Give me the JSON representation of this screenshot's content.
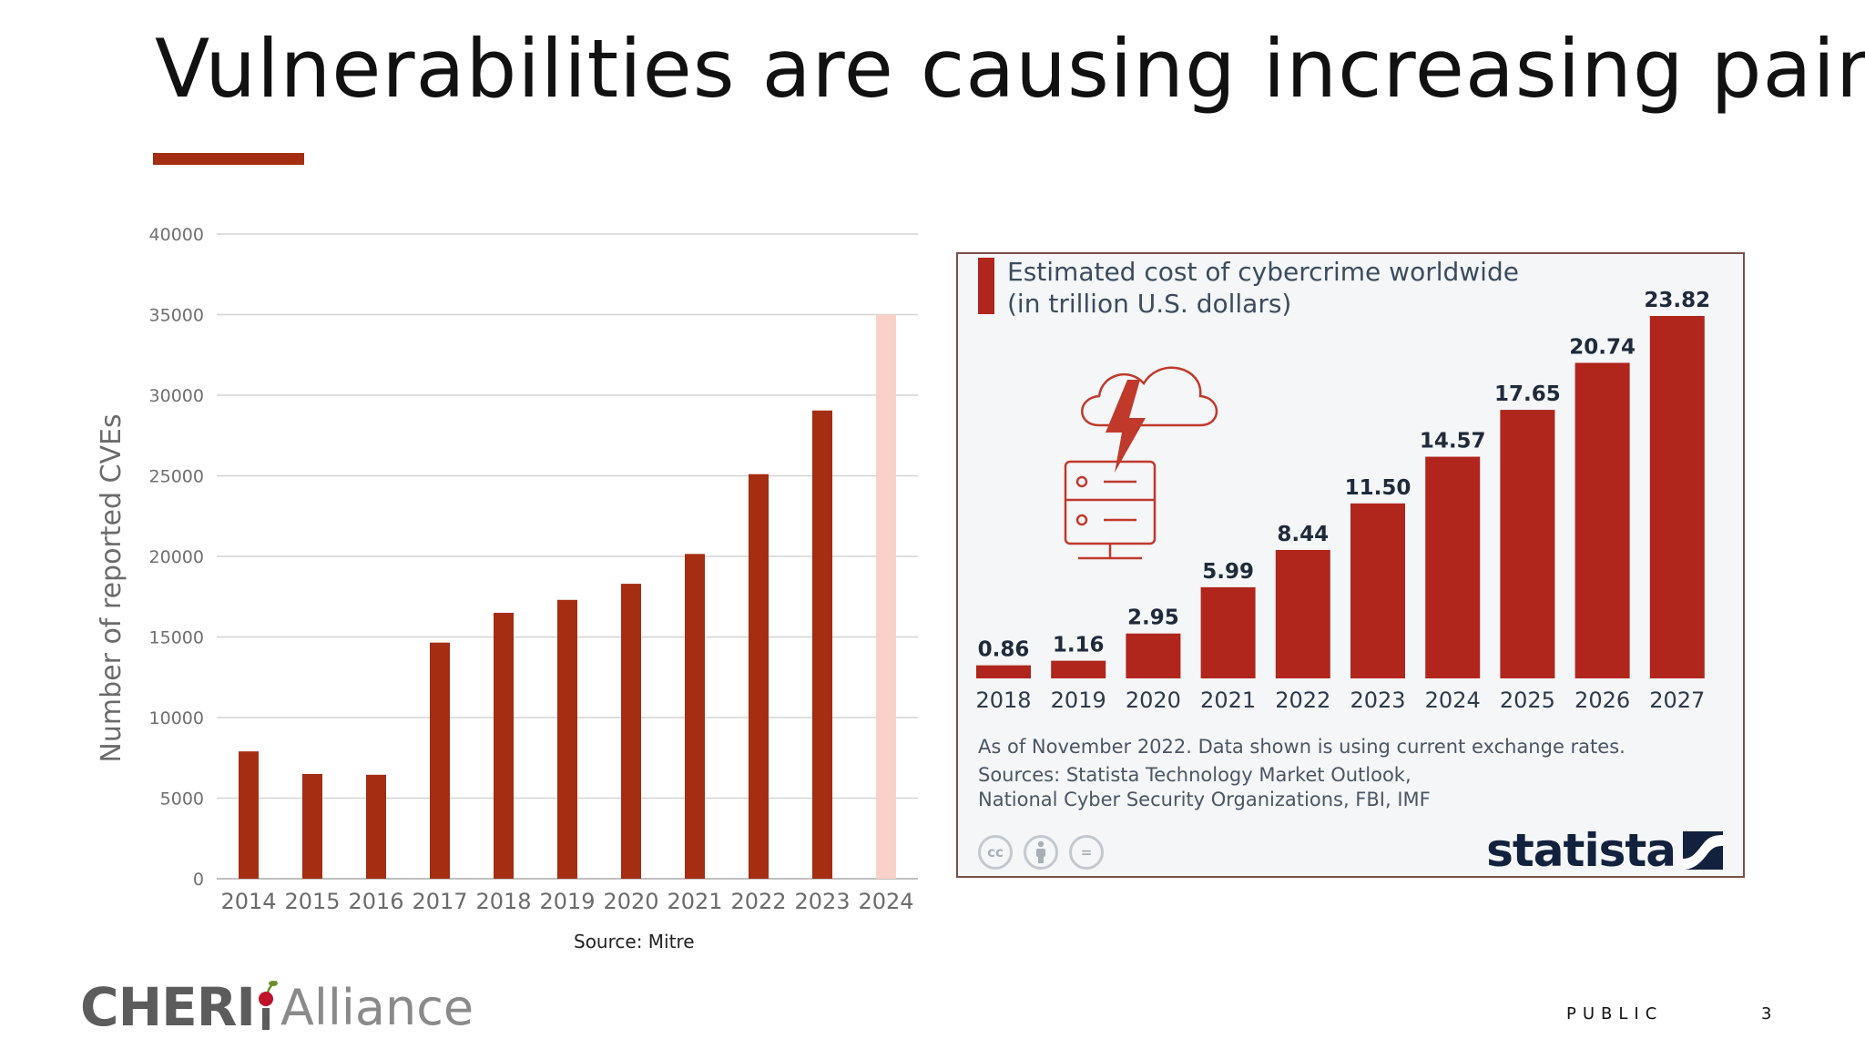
{
  "slide": {
    "title": "Vulnerabilities are causing increasing pain",
    "source_note": "Source: Mitre",
    "classification": "PUBLIC",
    "page_number": "3",
    "logo": {
      "bold": "CHERI",
      "light": "Alliance"
    },
    "accent_color": "#a52d12"
  },
  "statista": {
    "footnote": "As of November 2022. Data shown is using current exchange rates.",
    "sources_line1": "Sources: Statista Technology Market Outlook,",
    "sources_line2": "National Cyber Security Organizations, FBI, IMF",
    "brand": "statista",
    "cc_icons": [
      "cc",
      "by",
      "="
    ]
  },
  "chart_data": [
    {
      "type": "bar",
      "title": "",
      "xlabel": "",
      "ylabel": "Number of reported CVEs",
      "categories": [
        "2014",
        "2015",
        "2016",
        "2017",
        "2018",
        "2019",
        "2020",
        "2021",
        "2022",
        "2023",
        "2024"
      ],
      "values": [
        7900,
        6500,
        6450,
        14650,
        16500,
        17300,
        18300,
        20150,
        25100,
        29050,
        35000
      ],
      "ylim": [
        0,
        40000
      ],
      "yticks": [
        0,
        5000,
        10000,
        15000,
        20000,
        25000,
        30000,
        35000,
        40000
      ],
      "ytick_labels": [
        "0",
        "5000",
        "10000",
        "15000",
        "20000",
        "25000",
        "30000",
        "35000",
        "40000"
      ],
      "grid": true,
      "bar_color": "#a52d12",
      "highlight_color": "#f9d1c9",
      "highlight_category": "2024"
    },
    {
      "type": "bar",
      "title": "Estimated cost of cybercrime worldwide",
      "subtitle": "(in trillion U.S. dollars)",
      "categories": [
        "2018",
        "2019",
        "2020",
        "2021",
        "2022",
        "2023",
        "2024",
        "2025",
        "2026",
        "2027"
      ],
      "values": [
        0.86,
        1.16,
        2.95,
        5.99,
        8.44,
        11.5,
        14.57,
        17.65,
        20.74,
        23.82
      ],
      "value_labels": [
        "0.86",
        "1.16",
        "2.95",
        "5.99",
        "8.44",
        "11.50",
        "14.57",
        "17.65",
        "20.74",
        "23.82"
      ],
      "grid": false,
      "bar_color": "#b0261c"
    }
  ]
}
